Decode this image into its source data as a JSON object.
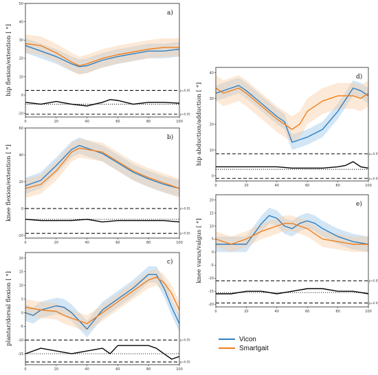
{
  "colors": {
    "vicon": "#2f7fc1",
    "smartgait": "#f07f1e",
    "vicon_band": "#9cc7ea",
    "smartgait_band": "#f9cfa6"
  },
  "legend": {
    "vicon": "Vicon",
    "smartgait": "Smartgait"
  },
  "chart_data": [
    {
      "type": "line",
      "panel": "a)",
      "ylabel": "hip flexion/extention [ °]",
      "xlim": [
        0,
        100
      ],
      "ylim": [
        -12,
        50
      ],
      "xticks": [
        0,
        20,
        40,
        60,
        80,
        100
      ],
      "yticks": [
        -10,
        0,
        10,
        20,
        30,
        40,
        50
      ],
      "ref_lines": [
        {
          "y": 2.5,
          "label": "p=0.05"
        },
        {
          "y": -10.5,
          "label": "p=0.05"
        }
      ],
      "dotted_line": -5,
      "series": [
        {
          "name": "Vicon",
          "x": [
            0,
            10,
            20,
            30,
            35,
            40,
            50,
            60,
            70,
            80,
            90,
            100
          ],
          "y": [
            27,
            24,
            21,
            17,
            15.5,
            16,
            19,
            21,
            22.5,
            24,
            24,
            25
          ],
          "band": 4
        },
        {
          "name": "Smartgait",
          "x": [
            0,
            10,
            20,
            30,
            35,
            40,
            50,
            60,
            70,
            80,
            90,
            100
          ],
          "y": [
            28,
            27,
            23,
            18,
            16,
            17,
            20,
            22,
            23.5,
            25,
            26,
            26
          ],
          "band": 5
        }
      ],
      "spm_curve": {
        "x": [
          0,
          10,
          20,
          30,
          40,
          50,
          55,
          60,
          70,
          80,
          90,
          100
        ],
        "y": [
          -4,
          -5,
          -3.5,
          -5,
          -6,
          -4,
          -2.5,
          -3,
          -5,
          -4,
          -4,
          -4.5
        ]
      }
    },
    {
      "type": "line",
      "panel": "b)",
      "ylabel": "knee flexion/extention [ °]",
      "xlim": [
        0,
        100
      ],
      "ylim": [
        -22,
        60
      ],
      "xticks": [
        0,
        20,
        40,
        60,
        80,
        100
      ],
      "yticks": [
        -20,
        0,
        20,
        40,
        60
      ],
      "ref_lines": [
        {
          "y": 0,
          "label": "p=0.05"
        },
        {
          "y": -18.5,
          "label": "p=0.05"
        }
      ],
      "dotted_line": -8,
      "series": [
        {
          "name": "Vicon",
          "x": [
            0,
            10,
            20,
            30,
            35,
            40,
            50,
            60,
            70,
            80,
            90,
            100
          ],
          "y": [
            17,
            21,
            32,
            44,
            47,
            45,
            41,
            34,
            27,
            22,
            18,
            15
          ],
          "band": 6
        },
        {
          "name": "Smartgait",
          "x": [
            0,
            10,
            20,
            30,
            35,
            40,
            50,
            60,
            70,
            80,
            90,
            100
          ],
          "y": [
            15,
            18,
            28,
            42,
            45,
            44,
            42,
            35,
            28,
            23,
            19,
            15
          ],
          "band": 7
        }
      ],
      "spm_curve": {
        "x": [
          0,
          10,
          20,
          30,
          40,
          50,
          60,
          70,
          80,
          90,
          100
        ],
        "y": [
          -8,
          -9,
          -9,
          -9,
          -8,
          -10,
          -9,
          -9,
          -9,
          -9,
          -10
        ]
      }
    },
    {
      "type": "line",
      "panel": "c)",
      "ylabel": "plantar/dorsal flexion [ °]",
      "xlim": [
        0,
        100
      ],
      "ylim": [
        -19,
        22
      ],
      "xticks": [
        0,
        20,
        40,
        60,
        80,
        100
      ],
      "yticks": [
        -15,
        -10,
        -5,
        0,
        5,
        10,
        15,
        20
      ],
      "ref_lines": [
        {
          "y": -10,
          "label": "p=0.05"
        },
        {
          "y": -18,
          "label": "p=0.05"
        }
      ],
      "dotted_line": -15,
      "series": [
        {
          "name": "Vicon",
          "x": [
            0,
            5,
            10,
            20,
            25,
            30,
            35,
            40,
            50,
            60,
            70,
            80,
            85,
            90,
            95,
            100
          ],
          "y": [
            0,
            -1,
            1,
            2.5,
            2,
            0,
            -3,
            -6,
            1,
            5,
            9,
            14,
            14,
            9,
            2,
            -4
          ],
          "band": 3
        },
        {
          "name": "Smartgait",
          "x": [
            0,
            5,
            10,
            20,
            25,
            30,
            35,
            40,
            50,
            60,
            70,
            80,
            85,
            90,
            95,
            100
          ],
          "y": [
            2,
            1.5,
            1,
            0.5,
            -1,
            -2,
            -3,
            -4,
            0,
            4,
            8,
            12,
            13,
            11,
            7,
            1
          ],
          "band": 3
        }
      ],
      "spm_curve": {
        "x": [
          0,
          10,
          20,
          30,
          40,
          50,
          55,
          60,
          70,
          80,
          85,
          90,
          95,
          100
        ],
        "y": [
          -15,
          -13,
          -14,
          -15,
          -14,
          -13,
          -15,
          -12,
          -12,
          -12,
          -13,
          -15,
          -17,
          -16
        ]
      }
    },
    {
      "type": "line",
      "panel": "d)",
      "ylabel": "hip abduction/adduction [ °]",
      "xlim": [
        0,
        100
      ],
      "ylim": [
        -2,
        42
      ],
      "xticks": [
        0,
        20,
        40,
        60,
        80,
        100
      ],
      "yticks": [
        0,
        10,
        20,
        30,
        40
      ],
      "ref_lines": [
        {
          "y": 8.5,
          "label": "p=0.05"
        },
        {
          "y": -1,
          "label": "p=0.05"
        }
      ],
      "dotted_line": 2.5,
      "series": [
        {
          "name": "Vicon",
          "x": [
            0,
            5,
            10,
            15,
            20,
            30,
            40,
            45,
            50,
            55,
            60,
            70,
            80,
            90,
            95,
            100
          ],
          "y": [
            32,
            33,
            34,
            35,
            33,
            28,
            23,
            21,
            13,
            14,
            15,
            18,
            25,
            34,
            33,
            31
          ],
          "band": 3
        },
        {
          "name": "Smartgait",
          "x": [
            0,
            5,
            10,
            15,
            20,
            30,
            40,
            45,
            50,
            55,
            60,
            70,
            80,
            90,
            95,
            100
          ],
          "y": [
            34,
            32,
            33,
            34,
            32,
            27,
            22,
            20,
            18,
            20,
            25,
            29,
            31,
            31,
            30,
            32
          ],
          "band": 5
        }
      ],
      "spm_curve": {
        "x": [
          0,
          10,
          20,
          30,
          40,
          50,
          60,
          70,
          80,
          85,
          90,
          95,
          100
        ],
        "y": [
          3.5,
          3.5,
          3.5,
          3.5,
          3.5,
          3,
          3,
          3,
          3.5,
          4,
          5.5,
          3.5,
          3
        ]
      }
    },
    {
      "type": "line",
      "panel": "e)",
      "ylabel": "knee varus/valgus [ °]",
      "xlim": [
        0,
        100
      ],
      "ylim": [
        -21,
        22
      ],
      "xticks": [
        0,
        20,
        40,
        60,
        80,
        100
      ],
      "yticks": [
        -20,
        -15,
        -10,
        -5,
        0,
        5,
        10,
        15,
        20
      ],
      "ref_lines": [
        {
          "y": -11,
          "label": "p=0.05"
        },
        {
          "y": -19.5,
          "label": "p=0.05"
        }
      ],
      "dotted_line": -15.5,
      "series": [
        {
          "name": "Vicon",
          "x": [
            0,
            10,
            20,
            30,
            35,
            40,
            45,
            50,
            55,
            60,
            65,
            70,
            80,
            90,
            100
          ],
          "y": [
            3,
            3,
            3,
            11,
            14,
            13,
            10,
            9,
            11,
            12,
            11,
            9,
            6,
            4,
            3
          ],
          "band": 3
        },
        {
          "name": "Smartgait",
          "x": [
            0,
            10,
            20,
            30,
            35,
            40,
            45,
            50,
            55,
            60,
            65,
            70,
            80,
            90,
            100
          ],
          "y": [
            5,
            3,
            5,
            8,
            9,
            10,
            11,
            11,
            10,
            9,
            7,
            5,
            4,
            3,
            3
          ],
          "band": 3
        }
      ],
      "spm_curve": {
        "x": [
          0,
          10,
          20,
          30,
          40,
          50,
          60,
          70,
          80,
          90,
          100
        ],
        "y": [
          -16,
          -16,
          -15,
          -15,
          -16,
          -15,
          -14,
          -14,
          -15,
          -15,
          -16
        ]
      }
    }
  ]
}
